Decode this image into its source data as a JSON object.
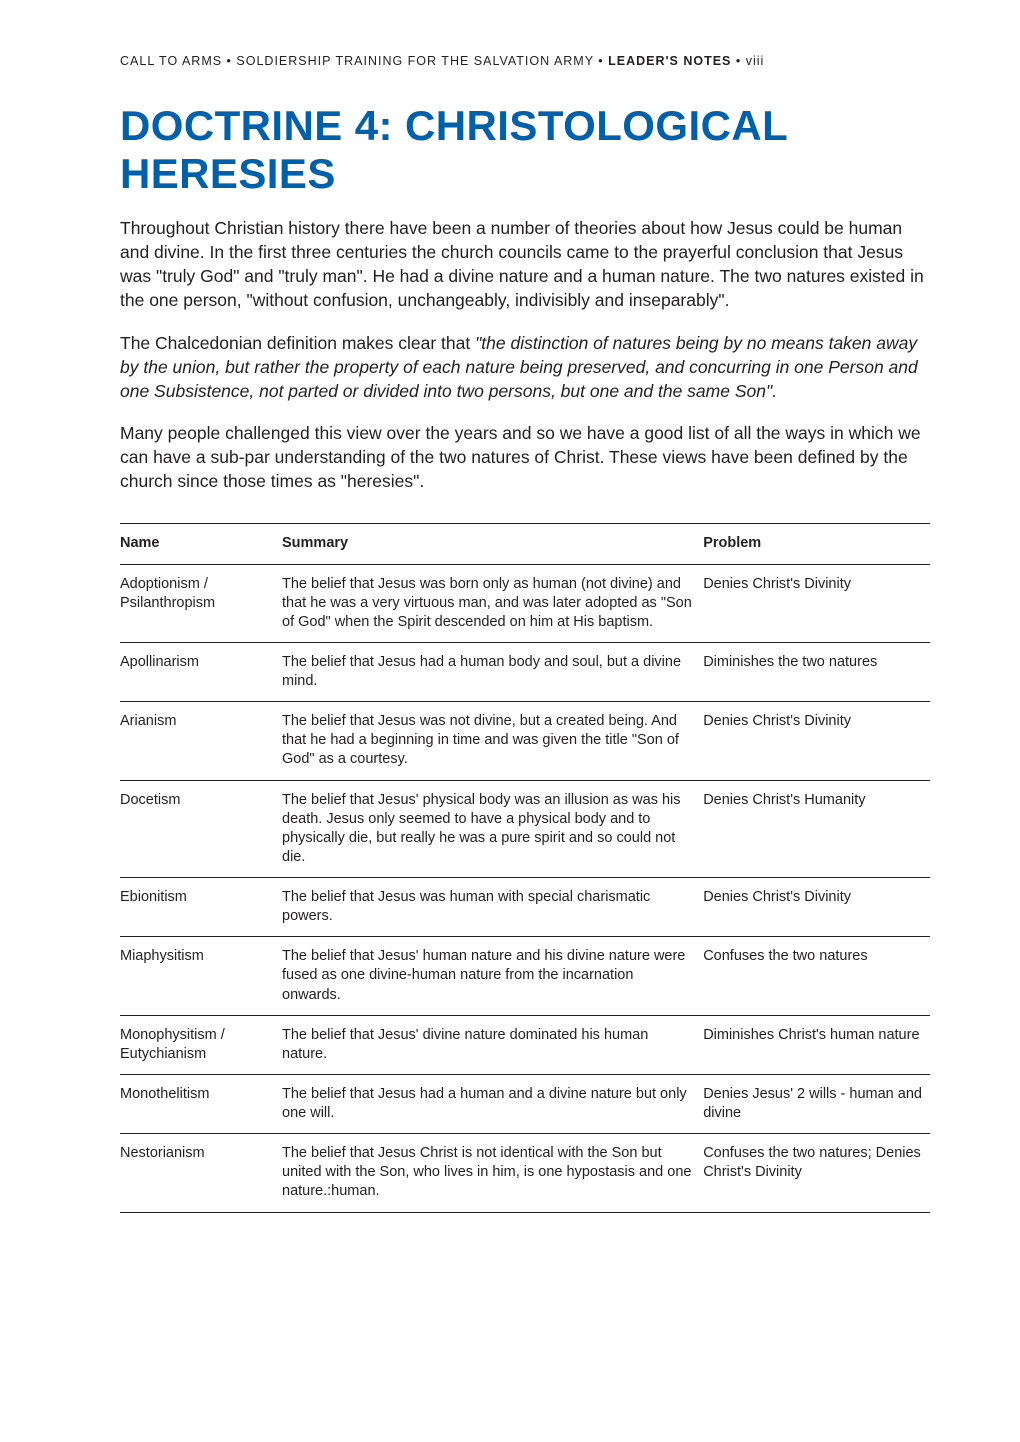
{
  "runningHead": {
    "prefix": "CALL TO ARMS • SOLDIERSHIP TRAINING FOR THE SALVATION ARMY • ",
    "bold": "LEADER'S NOTES",
    "suffix": " • viii"
  },
  "title": {
    "text": "DOCTRINE 4: CHRISTOLOGICAL HERESIES",
    "color": "#0060a9"
  },
  "paragraphs": [
    {
      "text": "Throughout Christian history there have been a number of theories about how Jesus could be human and divine. In the first three centuries the church councils came to the prayerful conclusion that Jesus was \"truly God\" and \"truly man\". He had a divine nature and a human nature. The two natures existed in the one person, \"without confusion, unchangeably, indivisibly and inseparably\"."
    },
    {
      "lead": "The Chalcedonian definition makes clear that ",
      "italic": "\"the distinction of natures being by no means taken away by the union, but rather the property of each nature being preserved, and concurring in one Person and one Subsistence, not parted or divided into two persons, but one and the same Son\"."
    },
    {
      "text": "Many people challenged this view over the years and so we have a good list of all the ways in which we can have a sub-par understanding of the two natures of Christ. These views have been defined by the church since those times as \"heresies\"."
    }
  ],
  "table": {
    "headers": {
      "name": "Name",
      "summary": "Summary",
      "problem": "Problem"
    },
    "rows": [
      {
        "name": "Adoptionism / Psilanthropism",
        "summary": "The belief that Jesus was born only as human (not divine) and that he was a very virtuous man, and was later adopted as \"Son of God\" when the Spirit descended on him at His baptism.",
        "problem": "Denies Christ's Divinity"
      },
      {
        "name": "Apollinarism",
        "summary": "The belief that Jesus had a human body and soul, but a divine mind.",
        "problem": "Diminishes the two natures"
      },
      {
        "name": "Arianism",
        "summary": "The belief that Jesus was not divine, but a created being. And that he had a beginning in time and was given the title \"Son of God\" as a courtesy.",
        "problem": "Denies Christ's Divinity"
      },
      {
        "name": "Docetism",
        "summary": "The belief that Jesus' physical body was an illusion as was his death. Jesus only seemed to have a physical body and to physically die, but really he was a pure spirit and so could not die.",
        "problem": "Denies Christ's Humanity"
      },
      {
        "name": "Ebionitism",
        "summary": "The belief that Jesus was human with special charismatic powers.",
        "problem": "Denies Christ's Divinity"
      },
      {
        "name": "Miaphysitism",
        "summary": "The belief that Jesus' human nature and his divine nature were fused as one divine-human nature from the incarnation onwards.",
        "problem": "Confuses the two natures"
      },
      {
        "name": "Monophysitism / Eutychianism",
        "summary": "The belief that Jesus' divine nature dominated his human nature.",
        "problem": "Diminishes Christ's human nature"
      },
      {
        "name": "Monothelitism",
        "summary": "The belief that Jesus had a human and a divine nature but only one will.",
        "problem": "Denies Jesus' 2 wills - human and divine"
      },
      {
        "name": "Nestorianism",
        "summary": "The belief that Jesus Christ is not identical with the Son but united with the Son, who lives in him, is one hypostasis and one nature.:human.",
        "problem": "Confuses the two natures; Denies Christ's Divinity"
      }
    ]
  }
}
